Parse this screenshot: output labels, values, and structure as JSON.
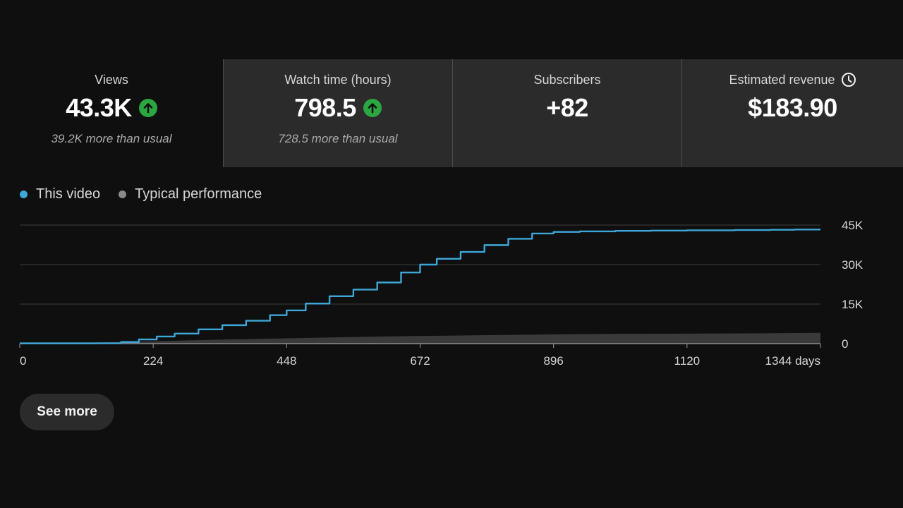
{
  "metrics": [
    {
      "label": "Views",
      "value": "43.3K",
      "sub": "39.2K more than usual",
      "trend": "up",
      "icon": "arrow-up-icon"
    },
    {
      "label": "Watch time (hours)",
      "value": "798.5",
      "sub": "728.5 more than usual",
      "trend": "up",
      "icon": "arrow-up-icon"
    },
    {
      "label": "Subscribers",
      "value": "+82"
    },
    {
      "label": "Estimated revenue",
      "value": "$183.90",
      "icon": "clock-icon"
    }
  ],
  "legend": [
    {
      "label": "This video",
      "color": "#3ea6d8"
    },
    {
      "label": "Typical performance",
      "color": "#8a8a8a"
    }
  ],
  "colors": {
    "up_badge": "#2ba640",
    "line": "#3ea6d8",
    "area": "#3a3a3a",
    "grid": "#3d3d3d"
  },
  "see_more_label": "See more",
  "chart_data": {
    "type": "line",
    "x_ticks": [
      0,
      224,
      448,
      672,
      896,
      1120,
      1344
    ],
    "x_tick_labels": [
      "0",
      "224",
      "448",
      "672",
      "896",
      "1120",
      "1344 days"
    ],
    "y_ticks": [
      0,
      15000,
      30000,
      45000
    ],
    "y_tick_labels": [
      "0",
      "15K",
      "30K",
      "45K"
    ],
    "xlim": [
      0,
      1344
    ],
    "ylim": [
      0,
      45000
    ],
    "grid": true,
    "legend_position": "top-left",
    "series": [
      {
        "name": "This video",
        "kind": "line",
        "x": [
          0,
          130,
          170,
          200,
          230,
          260,
          300,
          340,
          380,
          420,
          448,
          480,
          520,
          560,
          600,
          640,
          672,
          700,
          740,
          780,
          820,
          860,
          896,
          940,
          1000,
          1060,
          1120,
          1200,
          1260,
          1300,
          1344
        ],
        "y": [
          100,
          150,
          600,
          1600,
          2700,
          3800,
          5400,
          7000,
          8700,
          10800,
          12600,
          15200,
          18000,
          20500,
          23200,
          27000,
          30000,
          32200,
          34800,
          37400,
          39800,
          41800,
          42400,
          42600,
          42800,
          42900,
          43000,
          43100,
          43200,
          43300,
          43300
        ]
      },
      {
        "name": "Typical performance",
        "kind": "area",
        "x": [
          0,
          130,
          224,
          336,
          448,
          560,
          672,
          784,
          896,
          1008,
          1120,
          1232,
          1344
        ],
        "y": [
          0,
          200,
          900,
          1500,
          2000,
          2500,
          2900,
          3200,
          3500,
          3700,
          3800,
          3900,
          4100
        ]
      }
    ]
  }
}
